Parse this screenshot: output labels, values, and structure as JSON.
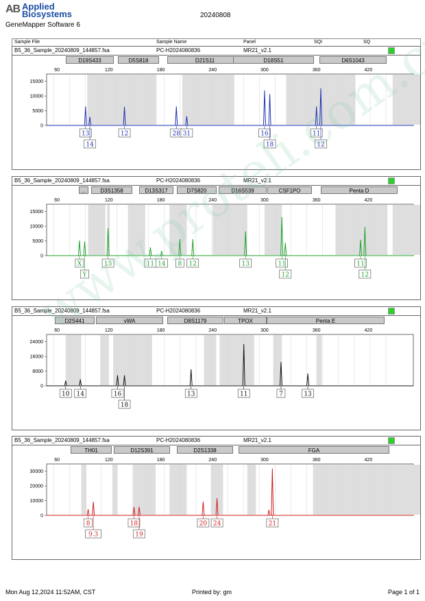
{
  "header": {
    "logo_mark": "AB",
    "brand_line1": "Applied",
    "brand_line2": "Biosystems",
    "software": "GeneMapper Software 6",
    "run_date": "20240808"
  },
  "table_header": {
    "sample_file": "Sample File",
    "sample_name": "Sample Name",
    "panel": "Panel",
    "sqi": "SQI",
    "sq": "SQ"
  },
  "colors": {
    "blue": "#1c2fb0",
    "green": "#1ba02a",
    "black": "#111111",
    "red": "#d11a1a",
    "status": "#2bd12b"
  },
  "footer": {
    "datetime": "Mon Aug 12,2024 11:52AM, CST",
    "printed_by": "Printed by: gm",
    "page": "Page 1 of 1"
  },
  "watermark": "www.proteli.com.cn",
  "chart_data": [
    {
      "type": "line",
      "dye": "blue",
      "sample_file": "B5_36_Sample_20240809_144857.fsa",
      "sample_name": "PC-H2024080836",
      "panel": "MR21_v2.1",
      "markers": [
        "D19S433",
        "D5S818",
        "D21S11",
        "D18S51",
        "D6S1043"
      ],
      "xticks": [
        60,
        120,
        180,
        240,
        300,
        360,
        420
      ],
      "xlim": [
        48,
        472
      ],
      "yticks": [
        0,
        5000,
        10000,
        15000
      ],
      "ylim": [
        0,
        17500
      ],
      "peaks": [
        [
          93,
          6300
        ],
        [
          98,
          2800
        ],
        [
          138,
          6200
        ],
        [
          198,
          6300
        ],
        [
          210,
          3000
        ],
        [
          300,
          11800
        ],
        [
          306,
          10500
        ],
        [
          360,
          6300
        ],
        [
          365,
          12500
        ]
      ],
      "alleles": [
        {
          "label": "13",
          "x": 93,
          "row": 0
        },
        {
          "label": "14",
          "x": 98,
          "row": 1
        },
        {
          "label": "12",
          "x": 138,
          "row": 0
        },
        {
          "label": "28",
          "x": 198,
          "row": 0
        },
        {
          "label": "31",
          "x": 210,
          "row": 0
        },
        {
          "label": "16",
          "x": 300,
          "row": 0
        },
        {
          "label": "18",
          "x": 306,
          "row": 1
        },
        {
          "label": "11",
          "x": 360,
          "row": 0
        },
        {
          "label": "12",
          "x": 365,
          "row": 1
        }
      ]
    },
    {
      "type": "line",
      "dye": "green",
      "sample_file": "B5_36_Sample_20240809_144857.fsa",
      "sample_name": "PC-H2024080836",
      "panel": "MR21_v2.1",
      "markers": [
        "...",
        "D3S1358",
        "D13S317",
        "D7S820",
        "D16S539",
        "CSF1PO",
        "Penta D"
      ],
      "xticks": [
        60,
        120,
        180,
        240,
        300,
        360,
        420
      ],
      "xlim": [
        48,
        472
      ],
      "yticks": [
        0,
        5000,
        10000,
        15000
      ],
      "ylim": [
        0,
        17500
      ],
      "peaks": [
        [
          86,
          5000
        ],
        [
          92,
          4700
        ],
        [
          119,
          9200
        ],
        [
          168,
          2700
        ],
        [
          181,
          1500
        ],
        [
          202,
          5500
        ],
        [
          217,
          5500
        ],
        [
          278,
          8100
        ],
        [
          320,
          13000
        ],
        [
          324,
          4200
        ],
        [
          411,
          5300
        ],
        [
          416,
          9600
        ]
      ],
      "alleles": [
        {
          "label": "X",
          "x": 86,
          "row": 0
        },
        {
          "label": "Y",
          "x": 92,
          "row": 1
        },
        {
          "label": "15",
          "x": 119,
          "row": 0
        },
        {
          "label": "11",
          "x": 168,
          "row": 0
        },
        {
          "label": "14",
          "x": 181,
          "row": 0
        },
        {
          "label": "8",
          "x": 202,
          "row": 0
        },
        {
          "label": "12",
          "x": 217,
          "row": 0
        },
        {
          "label": "13",
          "x": 278,
          "row": 0
        },
        {
          "label": "11",
          "x": 320,
          "row": 0
        },
        {
          "label": "12",
          "x": 324,
          "row": 1
        },
        {
          "label": "11",
          "x": 411,
          "row": 0
        },
        {
          "label": "12",
          "x": 416,
          "row": 1
        }
      ]
    },
    {
      "type": "line",
      "dye": "black",
      "sample_file": "B5_36_Sample_20240809_144857.fsa",
      "sample_name": "PC-H2024080836",
      "panel": "MR21_v2.1",
      "markers": [
        "D2S441",
        "vWA",
        "D8S1179",
        "TPOX",
        "Penta E"
      ],
      "xticks": [
        60,
        120,
        180,
        240,
        300,
        360,
        420
      ],
      "xlim": [
        48,
        472
      ],
      "yticks": [
        0,
        8000,
        16000,
        24000
      ],
      "ylim": [
        0,
        28000
      ],
      "peaks": [
        [
          70,
          2600
        ],
        [
          87,
          3300
        ],
        [
          130,
          5600
        ],
        [
          138,
          5500
        ],
        [
          215,
          8800
        ],
        [
          276,
          22500
        ],
        [
          319,
          12700
        ],
        [
          350,
          6500
        ]
      ],
      "alleles": [
        {
          "label": "10",
          "x": 70,
          "row": 0
        },
        {
          "label": "14",
          "x": 87,
          "row": 0
        },
        {
          "label": "16",
          "x": 130,
          "row": 0
        },
        {
          "label": "18",
          "x": 138,
          "row": 1
        },
        {
          "label": "13",
          "x": 215,
          "row": 0
        },
        {
          "label": "11",
          "x": 276,
          "row": 0
        },
        {
          "label": "7",
          "x": 319,
          "row": 0
        },
        {
          "label": "13",
          "x": 350,
          "row": 0
        }
      ]
    },
    {
      "type": "line",
      "dye": "red",
      "sample_file": "B5_36_Sample_20240809_144857.fsa",
      "sample_name": "PC-H2024080836",
      "panel": "MR21_v2.1",
      "markers": [
        "TH01",
        "D12S391",
        "D2S1338",
        "FGA"
      ],
      "xticks": [
        60,
        120,
        180,
        240,
        300,
        360,
        420
      ],
      "xlim": [
        48,
        472
      ],
      "yticks": [
        0,
        10000,
        20000,
        30000
      ],
      "ylim": [
        0,
        35000
      ],
      "peaks": [
        [
          96,
          4000
        ],
        [
          102,
          9000
        ],
        [
          149,
          5500
        ],
        [
          155,
          5500
        ],
        [
          229,
          9000
        ],
        [
          245,
          11500
        ],
        [
          305,
          3500
        ],
        [
          309,
          31500
        ]
      ],
      "alleles": [
        {
          "label": "8",
          "x": 96,
          "row": 0
        },
        {
          "label": "9.3",
          "x": 102,
          "row": 1
        },
        {
          "label": "18",
          "x": 149,
          "row": 0
        },
        {
          "label": "19",
          "x": 155,
          "row": 1
        },
        {
          "label": "20",
          "x": 229,
          "row": 0
        },
        {
          "label": "24",
          "x": 245,
          "row": 0
        },
        {
          "label": "21",
          "x": 309,
          "row": 0
        }
      ]
    }
  ]
}
